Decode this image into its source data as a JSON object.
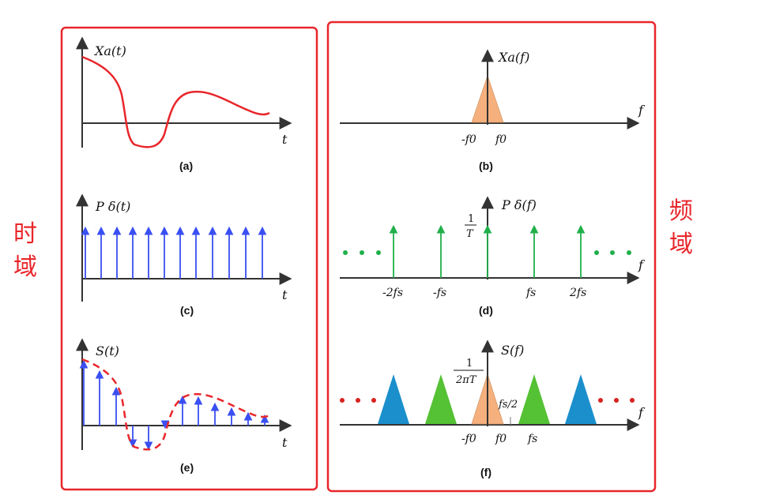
{
  "labels": {
    "time_domain": "时\n域",
    "freq_domain": "频\n域"
  },
  "colors": {
    "frame": "#e8262b",
    "curve": "#e8262b",
    "impulse_blue": "#3a4ff2",
    "impulse_green": "#20b04a",
    "dot_green": "#20b04a",
    "dot_red": "#d9211f",
    "peach": "#f5b07e",
    "green_tri": "#55c134",
    "blue_tri": "#1b8fcc"
  },
  "panels": {
    "a": {
      "ylabel": "Xa(t)",
      "xlabel": "t",
      "caption": "(a)"
    },
    "b": {
      "ylabel": "Xa(f)",
      "xlabel": "f",
      "caption": "(b)",
      "tick_neg": "-f0",
      "tick_pos": "f0"
    },
    "c": {
      "ylabel": "P δ(t)",
      "xlabel": "t",
      "caption": "(c)"
    },
    "d": {
      "ylabel": "P δ(f)",
      "xlabel": "f",
      "caption": "(d)",
      "frac_num": "1",
      "frac_den": "T",
      "ticks": [
        "-2fs",
        "-fs",
        "fs",
        "2fs"
      ]
    },
    "e": {
      "ylabel": "S(t)",
      "xlabel": "t",
      "caption": "(e)"
    },
    "f": {
      "ylabel": "S(f)",
      "xlabel": "f",
      "caption": "(f)",
      "frac_num": "1",
      "frac_den": "2πT",
      "half_label": "fs/2",
      "ticks": [
        "-f0",
        "f0",
        "fs"
      ]
    }
  }
}
